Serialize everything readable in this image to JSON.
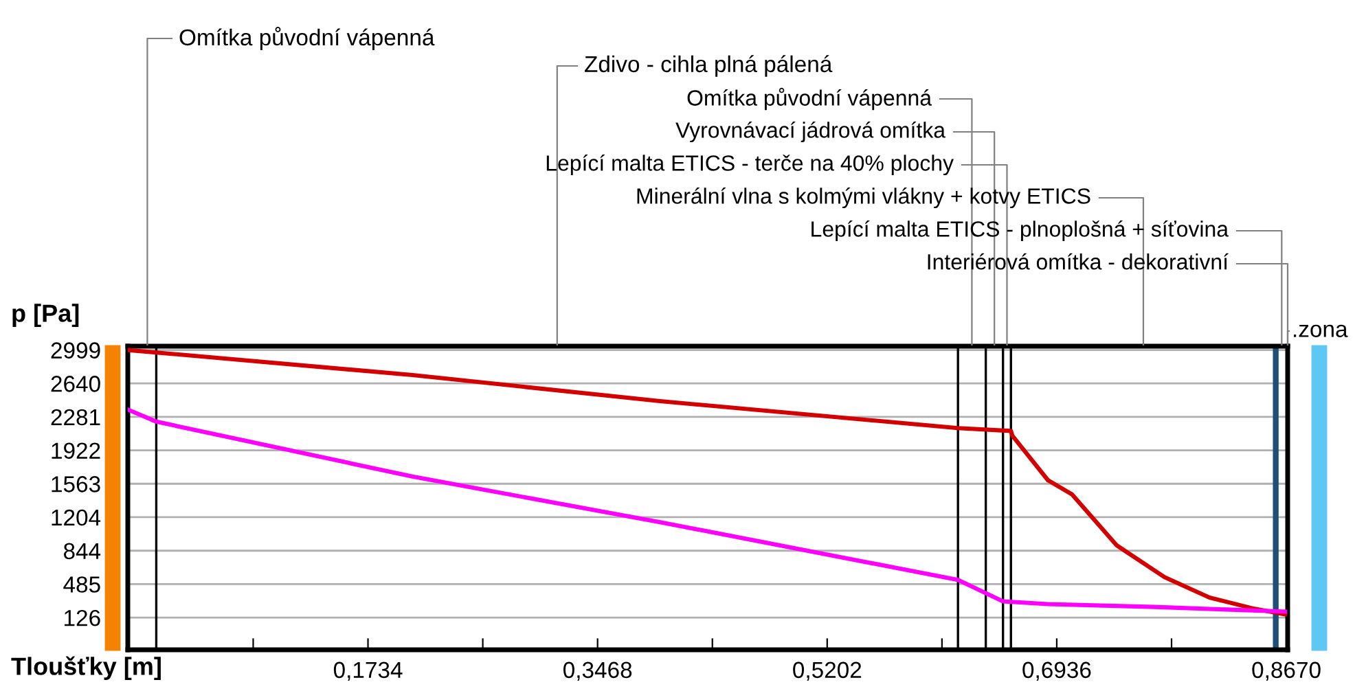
{
  "chart_data": {
    "type": "line",
    "xlabel": "Tloušťky [m]",
    "ylabel": "p [Pa]",
    "xlim": [
      -0.008,
      0.868
    ],
    "ylim": [
      -220,
      3040
    ],
    "xticks": [
      {
        "value": 0.0867,
        "label": null
      },
      {
        "value": 0.1734,
        "label": "0,1734"
      },
      {
        "value": 0.2601,
        "label": null
      },
      {
        "value": 0.3468,
        "label": "0,3468"
      },
      {
        "value": 0.4335,
        "label": null
      },
      {
        "value": 0.5202,
        "label": "0,5202"
      },
      {
        "value": 0.6069,
        "label": null
      },
      {
        "value": 0.6936,
        "label": "0,6936"
      },
      {
        "value": 0.7803,
        "label": null
      },
      {
        "value": 0.867,
        "label": "0,8670"
      }
    ],
    "yticks": [
      126,
      485,
      844,
      1204,
      1563,
      1922,
      2281,
      2640,
      2999
    ],
    "grid": "y",
    "legend": false,
    "marker": "none",
    "line_style": "solid",
    "series": [
      {
        "color": "#d40000",
        "x": [
          -0.008,
          0.207,
          0.394,
          0.619,
          0.659,
          0.66,
          0.687,
          0.705,
          0.739,
          0.775,
          0.809,
          0.843,
          0.866
        ],
        "values": [
          2999,
          2730,
          2450,
          2160,
          2130,
          2080,
          1600,
          1450,
          900,
          560,
          340,
          220,
          160
        ]
      },
      {
        "color": "#ff00ff",
        "x": [
          -0.008,
          0.0135,
          0.207,
          0.394,
          0.619,
          0.653,
          0.687,
          0.767,
          0.866
        ],
        "values": [
          2360,
          2230,
          1640,
          1150,
          530,
          300,
          270,
          240,
          190
        ]
      }
    ],
    "ref_lines": [
      {
        "axis": "x",
        "value": 0.0135,
        "color": "#000000"
      },
      {
        "axis": "x",
        "value": 0.619,
        "color": "#000000"
      },
      {
        "axis": "x",
        "value": 0.64,
        "color": "#000000"
      },
      {
        "axis": "x",
        "value": 0.653,
        "color": "#000000"
      },
      {
        "axis": "x",
        "value": 0.659,
        "color": "#000000"
      },
      {
        "axis": "x",
        "value": 0.859,
        "color": "#1f4e79"
      }
    ],
    "annotations": [
      "Omítka původní vápenná",
      "Zdivo - cihla plná pálená",
      "Omítka původní vápenná",
      "Vyrovnávací jádrová omítka",
      "Lepící malta ETICS - terče na 40% plochy",
      "Minerální vlna s kolmými vlákny + kotvy ETICS",
      "Lepící malta ETICS - plnoplošná + síťovina",
      "Interiérová omítka - dekorativní",
      ".zona"
    ]
  }
}
